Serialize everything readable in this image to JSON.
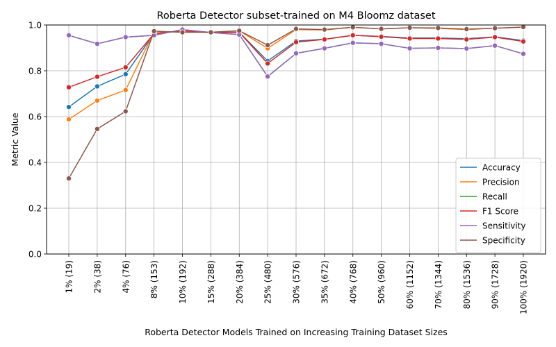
{
  "chart_data": {
    "type": "line",
    "title": "Roberta Detector subset-trained on M4 Bloomz dataset",
    "xlabel": "Roberta Detector Models Trained on Increasing Training Dataset Sizes",
    "ylabel": "Metric Value",
    "ylim": [
      0,
      1
    ],
    "yticks": [
      "0.0",
      "0.2",
      "0.4",
      "0.6",
      "0.8",
      "1.0"
    ],
    "grid": true,
    "legend_position": "lower-right",
    "categories": [
      "1% (19)",
      "2% (38)",
      "4% (76)",
      "8% (153)",
      "10% (192)",
      "15% (288)",
      "20% (384)",
      "25% (480)",
      "30% (576)",
      "35% (672)",
      "40% (768)",
      "50% (960)",
      "60% (1152)",
      "70% (1344)",
      "80% (1536)",
      "90% (1728)",
      "100% (1920)"
    ],
    "series": [
      {
        "name": "Accuracy",
        "color": "#1f77b4",
        "values": [
          0.642,
          0.732,
          0.785,
          0.962,
          0.975,
          0.967,
          0.968,
          0.843,
          0.93,
          0.938,
          0.955,
          0.95,
          0.943,
          0.943,
          0.94,
          0.948,
          0.932
        ]
      },
      {
        "name": "Precision",
        "color": "#ff7f0e",
        "values": [
          0.588,
          0.67,
          0.716,
          0.97,
          0.97,
          0.968,
          0.975,
          0.898,
          0.98,
          0.978,
          0.99,
          0.983,
          0.988,
          0.985,
          0.98,
          0.986,
          0.99
        ]
      },
      {
        "name": "Recall",
        "color": "#2ca02c",
        "values": [
          0.955,
          0.918,
          0.947,
          0.955,
          0.98,
          0.967,
          0.958,
          0.775,
          0.876,
          0.898,
          0.922,
          0.918,
          0.898,
          0.9,
          0.897,
          0.91,
          0.874
        ]
      },
      {
        "name": "F1 Score",
        "color": "#d62728",
        "values": [
          0.728,
          0.774,
          0.815,
          0.962,
          0.975,
          0.967,
          0.968,
          0.832,
          0.925,
          0.937,
          0.955,
          0.949,
          0.941,
          0.941,
          0.937,
          0.947,
          0.928
        ]
      },
      {
        "name": "Sensitivity",
        "color": "#9467bd",
        "values": [
          0.955,
          0.918,
          0.947,
          0.955,
          0.98,
          0.967,
          0.958,
          0.775,
          0.876,
          0.898,
          0.922,
          0.918,
          0.898,
          0.9,
          0.897,
          0.91,
          0.874
        ]
      },
      {
        "name": "Specificity",
        "color": "#8c564b",
        "values": [
          0.33,
          0.546,
          0.623,
          0.973,
          0.968,
          0.968,
          0.975,
          0.912,
          0.983,
          0.98,
          0.99,
          0.983,
          0.988,
          0.987,
          0.982,
          0.986,
          0.991
        ]
      }
    ]
  }
}
